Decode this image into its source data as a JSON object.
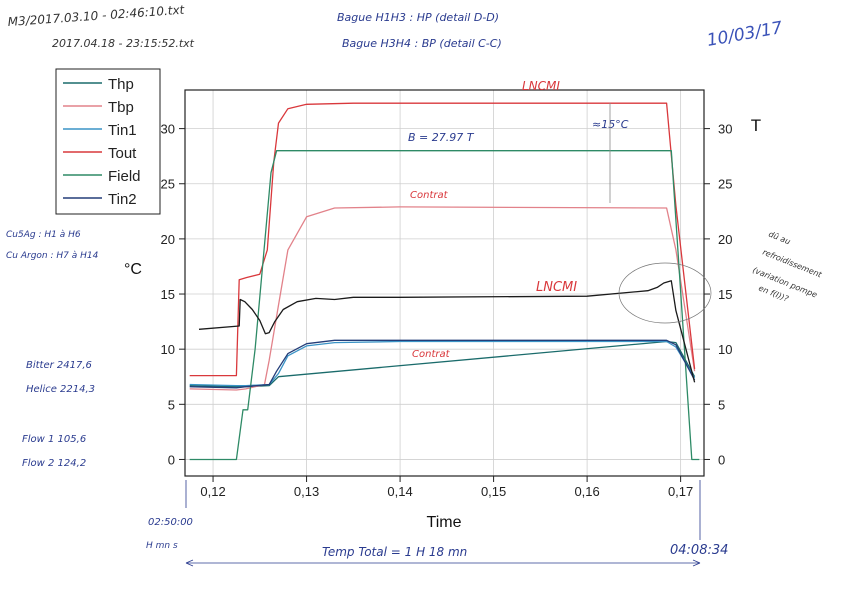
{
  "chart_data": {
    "type": "line",
    "xlabel": "Time",
    "ylabel": "°C",
    "y2label": "T",
    "xlim": [
      0.117,
      0.1725
    ],
    "ylim": [
      -1.5,
      33.5
    ],
    "y2lim": [
      -1.5,
      33.5
    ],
    "grid": true,
    "legend_position": "top-left",
    "x_ticks": [
      "0,12",
      "0,13",
      "0,14",
      "0,15",
      "0,16",
      "0,17"
    ],
    "y_ticks": [
      "0",
      "5",
      "10",
      "15",
      "20",
      "25",
      "30"
    ],
    "y2_ticks": [
      "0",
      "5",
      "10",
      "15",
      "20",
      "25",
      "30"
    ],
    "series": [
      {
        "name": "Thp",
        "color": "#1a6b6b",
        "x": [
          0.1175,
          0.1225,
          0.1235,
          0.126,
          0.127,
          0.1685,
          0.1695,
          0.1715
        ],
        "y": [
          6.7,
          6.6,
          6.6,
          6.7,
          7.5,
          10.7,
          10.6,
          7.5
        ]
      },
      {
        "name": "Tbp",
        "color": "#e2828a",
        "x": [
          0.1175,
          0.1225,
          0.1235,
          0.1255,
          0.126,
          0.127,
          0.128,
          0.13,
          0.133,
          0.14,
          0.1685,
          0.1695,
          0.1715
        ],
        "y": [
          6.4,
          6.3,
          6.4,
          6.8,
          9,
          14,
          19,
          22,
          22.8,
          22.9,
          22.8,
          19,
          8
        ]
      },
      {
        "name": "Tin1",
        "color": "#3a93c6",
        "x": [
          0.1175,
          0.1225,
          0.1235,
          0.126,
          0.127,
          0.128,
          0.13,
          0.133,
          0.14,
          0.1685,
          0.1695,
          0.1715
        ],
        "y": [
          6.8,
          6.7,
          6.7,
          6.8,
          7.8,
          9.4,
          10.3,
          10.6,
          10.7,
          10.7,
          10.2,
          7.4
        ]
      },
      {
        "name": "Tout",
        "color": "#d9383c",
        "x": [
          0.1175,
          0.1225,
          0.1228,
          0.1236,
          0.125,
          0.1258,
          0.1265,
          0.127,
          0.128,
          0.13,
          0.135,
          0.1685,
          0.1695,
          0.1715
        ],
        "y": [
          7.6,
          7.6,
          16.3,
          16.5,
          16.8,
          19,
          27,
          30.5,
          31.8,
          32.2,
          32.3,
          32.3,
          23,
          8.2
        ]
      },
      {
        "name": "Field",
        "color": "#2e8a66",
        "x": [
          0.1175,
          0.1225,
          0.1232,
          0.1237,
          0.1245,
          0.1262,
          0.1268,
          0.169,
          0.1712,
          0.172
        ],
        "y": [
          0,
          0,
          4.5,
          4.5,
          10,
          26,
          28,
          28,
          0,
          0
        ]
      },
      {
        "name": "Tin2",
        "color": "#243d78",
        "x": [
          0.1175,
          0.1225,
          0.1235,
          0.126,
          0.1268,
          0.128,
          0.13,
          0.133,
          0.14,
          0.1685,
          0.1695,
          0.1715
        ],
        "y": [
          6.6,
          6.5,
          6.6,
          6.8,
          8.0,
          9.6,
          10.5,
          10.8,
          10.8,
          10.8,
          10.4,
          7.2
        ]
      },
      {
        "name": "",
        "color": "#1b1b1b",
        "x": [
          0.1185,
          0.1228,
          0.1229,
          0.1234,
          0.1242,
          0.125,
          0.1256,
          0.126,
          0.1266,
          0.1275,
          0.129,
          0.131,
          0.133,
          0.135,
          0.14,
          0.16,
          0.1665,
          0.1675,
          0.1682,
          0.169,
          0.1695,
          0.1715
        ],
        "y": [
          11.8,
          12.1,
          14.5,
          14.3,
          13.6,
          12.6,
          11.4,
          11.5,
          12.5,
          13.6,
          14.3,
          14.6,
          14.5,
          14.7,
          14.7,
          14.8,
          15.3,
          15.6,
          16.0,
          16.2,
          13.5,
          7.0
        ]
      }
    ]
  },
  "annotations": {
    "header_file_1": "M3/2017.03.10 - 02:46:10.txt",
    "header_file_2": "2017.04.18 - 23:15:52.txt",
    "bague_1": "Bague H1H3 : HP (detail D-D)",
    "bague_2": "Bague H3H4 : BP (detail C-C)",
    "date": "10/03/17",
    "lncmi_top": "LNCMI",
    "field_note": "B = 27.97 T",
    "delta_note": "≈15°C",
    "contrat_top": "Contrat",
    "lncmi_mid": "LNCMI",
    "contrat_bottom": "Contrat",
    "side_note_1": "Cu5Ag : H1 à H6",
    "side_note_2": "Cu Argon : H7 à H14",
    "bitter": "Bitter 2417,6",
    "helice": "Helice 2214,3",
    "flow1": "Flow 1  105,6",
    "flow2": "Flow 2  124,2",
    "start_time": "02:50:00",
    "start_sub": "H mn s",
    "end_time": "04:08:34",
    "total_time": "Temp Total = 1 H 18 mn",
    "right_note_1": "dû au",
    "right_note_2": "refroidissement",
    "right_note_3": "(variation pompe",
    "right_note_4": "en f(I))?"
  }
}
